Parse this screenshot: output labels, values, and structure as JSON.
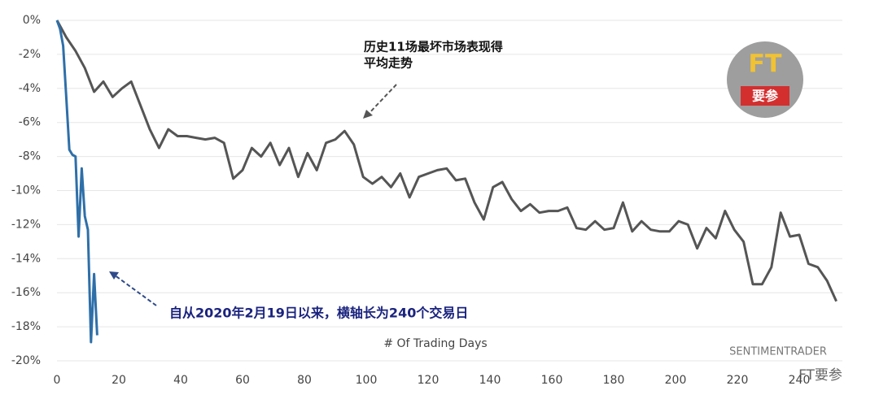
{
  "chart_data": {
    "type": "line",
    "xlabel": "# Of Trading Days",
    "source": "SENTIMENTRADER",
    "watermark": "FT要参",
    "logo": {
      "title": "FT",
      "caption": "要参"
    },
    "annotations": [
      "历史11场最坏市场表现得",
      "平均走势",
      "自从2020年2月19日以来，横轴长为240个交易日"
    ],
    "xlim": [
      0,
      253
    ],
    "xticks": [
      0,
      20,
      40,
      60,
      80,
      100,
      120,
      140,
      160,
      180,
      200,
      220,
      240
    ],
    "ylim": [
      -20.5,
      0.5
    ],
    "yticks": [
      {
        "value": 0,
        "label": "0%"
      },
      {
        "value": -2,
        "label": "-2%"
      },
      {
        "value": -4,
        "label": "-4%"
      },
      {
        "value": -6,
        "label": "-6%"
      },
      {
        "value": -8,
        "label": "-8%"
      },
      {
        "value": -10,
        "label": "-10%"
      },
      {
        "value": -12,
        "label": "-12%"
      },
      {
        "value": -14,
        "label": "-14%"
      },
      {
        "value": -16,
        "label": "-16%"
      },
      {
        "value": -18,
        "label": "-18%"
      },
      {
        "value": -20,
        "label": "-20%"
      }
    ],
    "grid": true,
    "series": [
      {
        "color": "#555555",
        "x": [
          0,
          3,
          6,
          9,
          12,
          15,
          18,
          21,
          24,
          27,
          30,
          33,
          36,
          39,
          42,
          45,
          48,
          51,
          54,
          57,
          60,
          63,
          66,
          69,
          72,
          75,
          78,
          81,
          84,
          87,
          90,
          93,
          96,
          99,
          102,
          105,
          108,
          111,
          114,
          117,
          120,
          123,
          126,
          129,
          132,
          135,
          138,
          141,
          144,
          147,
          150,
          153,
          156,
          159,
          162,
          165,
          168,
          171,
          174,
          177,
          180,
          183,
          186,
          189,
          192,
          195,
          198,
          201,
          204,
          207,
          210,
          213,
          216,
          219,
          222,
          225,
          228,
          231,
          234,
          237,
          240,
          243,
          246,
          249,
          252
        ],
        "values": [
          0,
          -1,
          -1.8,
          -2.8,
          -4.2,
          -3.6,
          -4.5,
          -4,
          -3.6,
          -5,
          -6.4,
          -7.5,
          -6.4,
          -6.8,
          -6.8,
          -6.9,
          -7,
          -6.9,
          -7.2,
          -9.3,
          -8.8,
          -7.5,
          -8,
          -7.2,
          -8.5,
          -7.5,
          -9.2,
          -7.8,
          -8.8,
          -7.2,
          -7,
          -6.5,
          -7.3,
          -9.2,
          -9.6,
          -9.2,
          -9.8,
          -9,
          -10.4,
          -9.2,
          -9,
          -8.8,
          -8.7,
          -9.4,
          -9.3,
          -10.7,
          -11.7,
          -9.8,
          -9.5,
          -10.5,
          -11.2,
          -10.8,
          -11.3,
          -11.2,
          -11.2,
          -11,
          -12.2,
          -12.3,
          -11.8,
          -12.3,
          -12.2,
          -10.7,
          -12.4,
          -11.8,
          -12.3,
          -12.4,
          -12.4,
          -11.8,
          -12,
          -13.4,
          -12.2,
          -12.8,
          -11.2,
          -12.3,
          -13,
          -15.5,
          -15.5,
          -14.5,
          -11.3,
          -12.7,
          -12.6,
          -14.3,
          -14.5,
          -15.3,
          -16.5
        ]
      },
      {
        "color": "#2e6fa8",
        "x": [
          0,
          1,
          2,
          3,
          4,
          5,
          6,
          7,
          8,
          9,
          10,
          11,
          12,
          13
        ],
        "values": [
          0,
          -0.5,
          -1.5,
          -4.5,
          -7.6,
          -7.9,
          -8,
          -12.7,
          -8.7,
          -11.5,
          -12.3,
          -18.9,
          -14.9,
          -18.5
        ]
      }
    ]
  }
}
